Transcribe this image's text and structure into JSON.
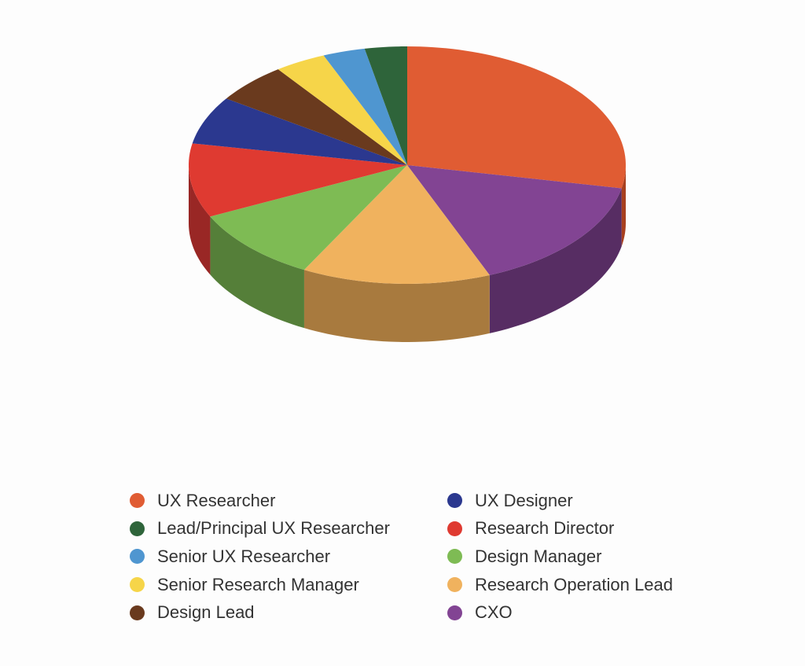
{
  "chart_data": {
    "type": "pie",
    "style": "3d",
    "title": "",
    "legend_position": "bottom",
    "slices": [
      {
        "label": "UX Researcher",
        "value": 28.8,
        "color": "#E05C33",
        "side_color": "#A8401F"
      },
      {
        "label": "CXO",
        "value": 16.1,
        "color": "#824493",
        "side_color": "#572D63"
      },
      {
        "label": "Research Operation Lead",
        "value": 14.3,
        "color": "#F0B25E",
        "side_color": "#A87A3E"
      },
      {
        "label": "Design Manager",
        "value": 10.3,
        "color": "#7EBB54",
        "side_color": "#557F39"
      },
      {
        "label": "Research Director",
        "value": 10.3,
        "color": "#DF3A31",
        "side_color": "#992725"
      },
      {
        "label": "UX Designer",
        "value": 6.7,
        "color": "#2B388F",
        "side_color": "#1D2563"
      },
      {
        "label": "Design Lead",
        "value": 5.6,
        "color": "#6A3A1E",
        "side_color": "#472613"
      },
      {
        "label": "Senior Research Manager",
        "value": 3.9,
        "color": "#F6D549",
        "side_color": "#B09830"
      },
      {
        "label": "Senior UX Researcher",
        "value": 3.2,
        "color": "#4F96D0",
        "side_color": "#356A94"
      },
      {
        "label": "Lead/Principal UX Researcher",
        "value": 3.2,
        "color": "#2E643A",
        "side_color": "#1F4528"
      }
    ]
  },
  "legend": {
    "items": [
      {
        "label": "UX Researcher",
        "color": "#E05C33"
      },
      {
        "label": "UX Designer",
        "color": "#2B388F"
      },
      {
        "label": "Lead/Principal UX Researcher",
        "color": "#2E643A"
      },
      {
        "label": "Research Director",
        "color": "#DF3A31"
      },
      {
        "label": "Senior UX Researcher",
        "color": "#4F96D0"
      },
      {
        "label": "Design Manager",
        "color": "#7EBB54"
      },
      {
        "label": "Senior Research Manager",
        "color": "#F6D549"
      },
      {
        "label": "Research Operation Lead",
        "color": "#F0B25E"
      },
      {
        "label": "Design Lead",
        "color": "#6A3A1E"
      },
      {
        "label": "CXO",
        "color": "#824493"
      }
    ]
  }
}
